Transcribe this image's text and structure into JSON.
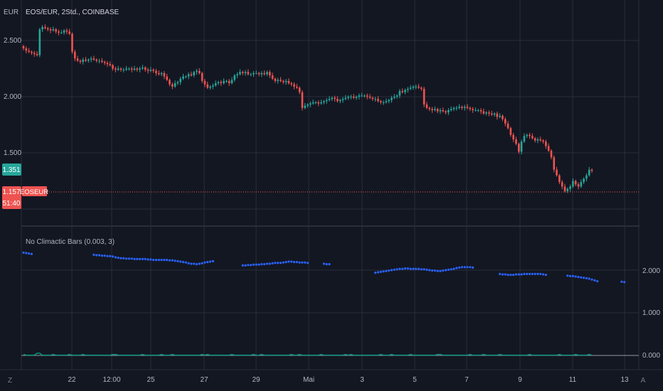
{
  "main_pane": {
    "currency_label": "EUR",
    "symbol_title": "EOS/EUR, 2Std., COINBASE",
    "y_ticks": [
      "2.500",
      "2.000",
      "1.500"
    ],
    "price_badge_top": {
      "value": "1.351",
      "color": "#26a69a"
    },
    "price_badge_current": {
      "value": "1.157",
      "timer": "51:40",
      "color": "#ef5350"
    },
    "symbol_tag": "EOSEUR"
  },
  "indicator_pane": {
    "title": "No Climactic Bars (0.003, 3)",
    "y_ticks": [
      "2.000",
      "1.000",
      "0.000"
    ]
  },
  "x_axis": {
    "labels": [
      "22",
      "12:00",
      "25",
      "27",
      "29",
      "Mai",
      "3",
      "5",
      "7",
      "9",
      "11",
      "13"
    ],
    "left_button": "Z",
    "right_button": "A"
  },
  "colors": {
    "background": "#131722",
    "grid": "#2a2e39",
    "up": "#26a69a",
    "down": "#ef5350",
    "dots": "#2962ff",
    "indicator_line": "#089981"
  },
  "chart_data": [
    {
      "type": "candlestick",
      "title": "EOS/EUR, 2Std., COINBASE",
      "ylabel": "EUR",
      "ylim": [
        1.0,
        2.7
      ],
      "grid": true,
      "x_tick_labels": [
        "22",
        "12:00",
        "25",
        "27",
        "29",
        "Mai",
        "3",
        "5",
        "7",
        "9",
        "11",
        "13"
      ],
      "close_series": [
        2.43,
        2.41,
        2.4,
        2.39,
        2.38,
        2.37,
        2.6,
        2.62,
        2.61,
        2.6,
        2.59,
        2.6,
        2.58,
        2.57,
        2.57,
        2.59,
        2.58,
        2.56,
        2.4,
        2.34,
        2.32,
        2.31,
        2.33,
        2.32,
        2.33,
        2.34,
        2.33,
        2.32,
        2.32,
        2.31,
        2.3,
        2.29,
        2.28,
        2.25,
        2.24,
        2.25,
        2.24,
        2.24,
        2.25,
        2.25,
        2.24,
        2.25,
        2.24,
        2.25,
        2.26,
        2.24,
        2.23,
        2.24,
        2.23,
        2.21,
        2.2,
        2.21,
        2.18,
        2.15,
        2.11,
        2.09,
        2.12,
        2.13,
        2.16,
        2.18,
        2.18,
        2.2,
        2.19,
        2.22,
        2.23,
        2.21,
        2.14,
        2.11,
        2.08,
        2.09,
        2.1,
        2.12,
        2.13,
        2.12,
        2.14,
        2.14,
        2.12,
        2.15,
        2.19,
        2.2,
        2.22,
        2.21,
        2.22,
        2.2,
        2.2,
        2.21,
        2.21,
        2.2,
        2.21,
        2.2,
        2.22,
        2.19,
        2.16,
        2.14,
        2.15,
        2.14,
        2.13,
        2.14,
        2.12,
        2.11,
        2.09,
        2.08,
        2.04,
        1.9,
        1.92,
        1.93,
        1.94,
        1.95,
        1.95,
        1.94,
        1.95,
        1.96,
        1.97,
        1.98,
        1.99,
        1.98,
        1.96,
        1.97,
        1.98,
        1.99,
        2.0,
        2.0,
        1.99,
        2.0,
        2.01,
        2.01,
        2.01,
        2.0,
        1.99,
        1.98,
        1.98,
        1.96,
        1.95,
        1.95,
        1.96,
        1.97,
        1.99,
        2.0,
        2.01,
        2.05,
        2.04,
        2.06,
        2.07,
        2.08,
        2.09,
        2.09,
        2.08,
        2.07,
        1.93,
        1.9,
        1.89,
        1.88,
        1.89,
        1.87,
        1.88,
        1.87,
        1.86,
        1.88,
        1.89,
        1.9,
        1.9,
        1.91,
        1.9,
        1.91,
        1.9,
        1.89,
        1.88,
        1.88,
        1.88,
        1.87,
        1.85,
        1.86,
        1.85,
        1.84,
        1.85,
        1.82,
        1.83,
        1.8,
        1.76,
        1.72,
        1.66,
        1.62,
        1.58,
        1.51,
        1.6,
        1.65,
        1.66,
        1.65,
        1.63,
        1.61,
        1.62,
        1.61,
        1.6,
        1.56,
        1.52,
        1.46,
        1.35,
        1.3,
        1.24,
        1.2,
        1.16,
        1.18,
        1.2,
        1.25,
        1.22,
        1.2,
        1.24,
        1.27,
        1.3,
        1.35,
        1.34
      ],
      "last_price_labels": [
        "1.351",
        "1.157"
      ]
    },
    {
      "type": "scatter",
      "title": "No Climactic Bars (0.003, 3)",
      "ylim": [
        -0.1,
        2.8
      ],
      "grid": true,
      "dot_segments": [
        {
          "start_bar": 0,
          "values": [
            2.41,
            2.4,
            2.39,
            2.38
          ]
        },
        {
          "start_bar": 26,
          "values": [
            2.36,
            2.35,
            2.35,
            2.34,
            2.34,
            2.33,
            2.33,
            2.32,
            2.3,
            2.29,
            2.28,
            2.28,
            2.27,
            2.27,
            2.27,
            2.26,
            2.26,
            2.26,
            2.26,
            2.26,
            2.25,
            2.25,
            2.24,
            2.24,
            2.24,
            2.24,
            2.24,
            2.24,
            2.23,
            2.23,
            2.22,
            2.21,
            2.2,
            2.19,
            2.18,
            2.16,
            2.15,
            2.15,
            2.14,
            2.15,
            2.16,
            2.18,
            2.19,
            2.2,
            2.21
          ]
        },
        {
          "start_bar": 81,
          "values": [
            2.11,
            2.11,
            2.12,
            2.12,
            2.13,
            2.13,
            2.13,
            2.14,
            2.14,
            2.15,
            2.15,
            2.16,
            2.17,
            2.17,
            2.17,
            2.18,
            2.19,
            2.2,
            2.2,
            2.19,
            2.19,
            2.18,
            2.18,
            2.18,
            2.17
          ]
        },
        {
          "start_bar": 111,
          "values": [
            2.15,
            2.14,
            2.14
          ]
        },
        {
          "start_bar": 130,
          "values": [
            1.94,
            1.95,
            1.96,
            1.97,
            1.98,
            1.99,
            2.0,
            2.01,
            2.02,
            2.03,
            2.03,
            2.04,
            2.04,
            2.03,
            2.03,
            2.03,
            2.03,
            2.02,
            2.02,
            2.01,
            2.0,
            1.99,
            1.99,
            1.98,
            1.98,
            1.99,
            2.0,
            2.01,
            2.02,
            2.03,
            2.05,
            2.06,
            2.07,
            2.07,
            2.07,
            2.07,
            2.06
          ]
        },
        {
          "start_bar": 176,
          "values": [
            1.91,
            1.9,
            1.9,
            1.89,
            1.89,
            1.89,
            1.9,
            1.9,
            1.9,
            1.91,
            1.91,
            1.91,
            1.91,
            1.91,
            1.91,
            1.91,
            1.9,
            1.89
          ]
        },
        {
          "start_bar": 201,
          "values": [
            1.87,
            1.86,
            1.86,
            1.85,
            1.84,
            1.83,
            1.82,
            1.81,
            1.8,
            1.78,
            1.76,
            1.74
          ]
        },
        {
          "start_bar": 221,
          "values": [
            1.73,
            1.72
          ]
        }
      ],
      "baseline": 0.0
    }
  ]
}
